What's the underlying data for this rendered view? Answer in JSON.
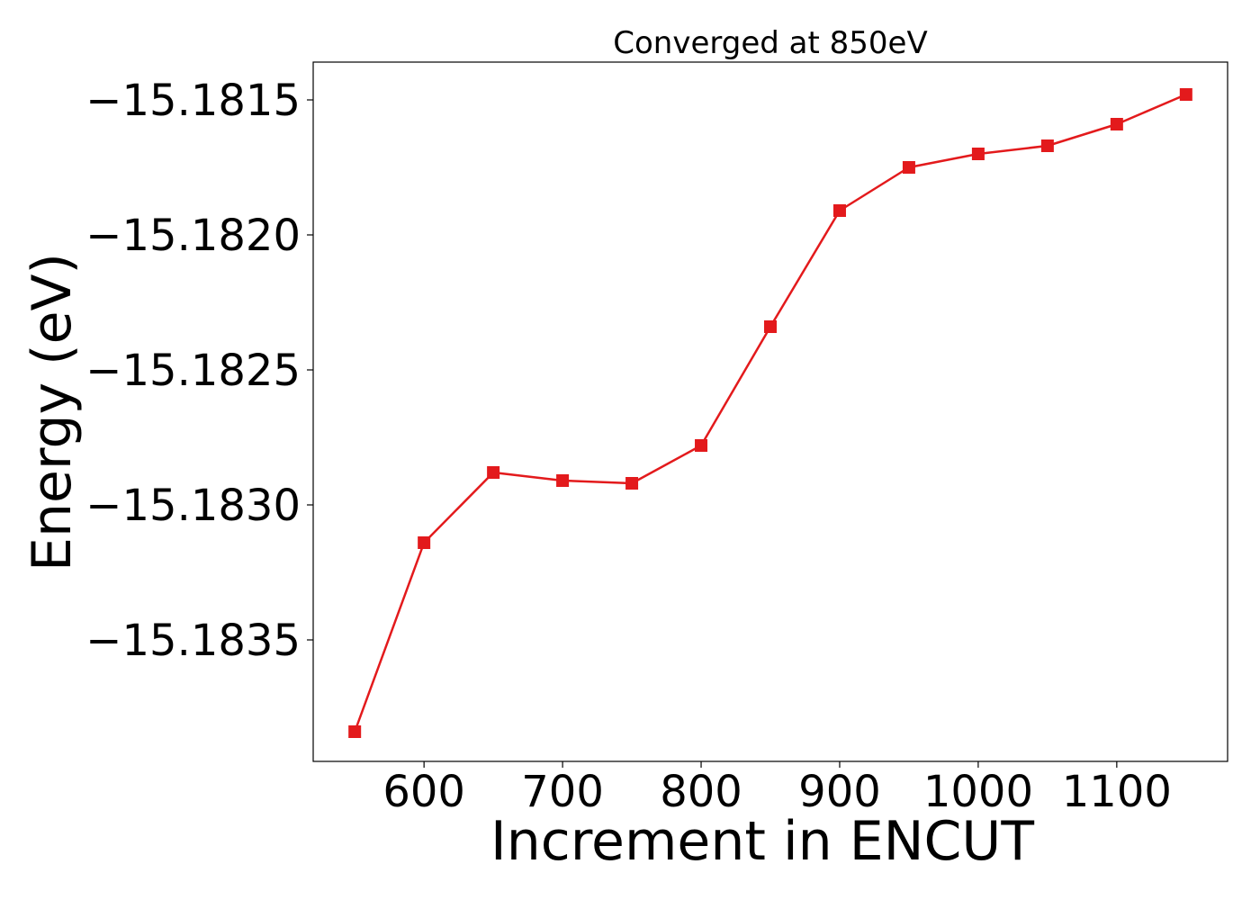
{
  "chart_data": {
    "type": "line",
    "title": "Converged at 850eV",
    "xlabel": "Increment in ENCUT",
    "ylabel": "Energy (eV)",
    "x": [
      550,
      600,
      650,
      700,
      750,
      800,
      850,
      900,
      950,
      1000,
      1050,
      1100,
      1150
    ],
    "series": [
      {
        "values": [
          -15.18384,
          -15.18314,
          -15.18288,
          -15.18291,
          -15.18292,
          -15.18278,
          -15.18234,
          -15.18191,
          -15.18175,
          -15.1817,
          -15.18167,
          -15.18159,
          -15.18148
        ],
        "color": "#e31a1c",
        "marker": "square"
      }
    ],
    "xticks": [
      600,
      700,
      800,
      900,
      1000,
      1100
    ],
    "xtick_labels": [
      "600",
      "700",
      "800",
      "900",
      "1000",
      "1100"
    ],
    "yticks": [
      -15.1815,
      -15.182,
      -15.1825,
      -15.183,
      -15.1835
    ],
    "ytick_labels": [
      "−15.1815",
      "−15.1820",
      "−15.1825",
      "−15.1830",
      "−15.1835"
    ],
    "xlim": [
      520,
      1180
    ],
    "ylim": [
      -15.18395,
      -15.18136
    ],
    "grid": false,
    "legend": "none"
  }
}
